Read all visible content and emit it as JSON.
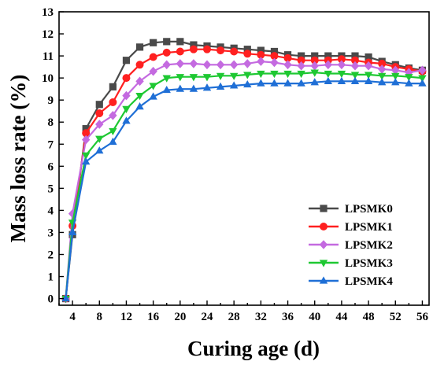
{
  "chart_data": {
    "type": "line",
    "xlabel": "Curing age (d)",
    "ylabel": "Mass loss rate (%)",
    "xlim": [
      2,
      57
    ],
    "ylim": [
      -0.3,
      13
    ],
    "x_ticks": [
      4,
      8,
      12,
      16,
      20,
      24,
      28,
      32,
      36,
      40,
      44,
      48,
      52,
      56
    ],
    "y_ticks": [
      0,
      1,
      2,
      3,
      4,
      5,
      6,
      7,
      8,
      9,
      10,
      11,
      12,
      13
    ],
    "grid": false,
    "legend_position": "bottom-right",
    "x": [
      3,
      4,
      6,
      8,
      10,
      12,
      14,
      16,
      18,
      20,
      22,
      24,
      26,
      28,
      30,
      32,
      34,
      36,
      38,
      40,
      42,
      44,
      46,
      48,
      50,
      52,
      54,
      56
    ],
    "series": [
      {
        "name": "LPSMK0",
        "color": "#4a4a4a",
        "marker": "square",
        "values": [
          0,
          2.9,
          7.7,
          8.8,
          9.6,
          10.8,
          11.4,
          11.6,
          11.65,
          11.65,
          11.5,
          11.45,
          11.4,
          11.35,
          11.3,
          11.25,
          11.2,
          11.05,
          11.0,
          11.0,
          11.0,
          11.0,
          11.0,
          10.95,
          10.75,
          10.6,
          10.45,
          10.35
        ]
      },
      {
        "name": "LPSMK1",
        "color": "#ff2020",
        "marker": "circle",
        "values": [
          0,
          3.3,
          7.5,
          8.4,
          8.9,
          10.0,
          10.6,
          10.95,
          11.15,
          11.2,
          11.3,
          11.3,
          11.25,
          11.2,
          11.1,
          11.05,
          11.0,
          10.9,
          10.8,
          10.8,
          10.8,
          10.85,
          10.8,
          10.7,
          10.65,
          10.5,
          10.4,
          10.3
        ]
      },
      {
        "name": "LPSMK2",
        "color": "#c46ae0",
        "marker": "diamond",
        "values": [
          0,
          3.85,
          7.2,
          7.9,
          8.3,
          9.2,
          9.85,
          10.3,
          10.6,
          10.65,
          10.65,
          10.6,
          10.6,
          10.6,
          10.65,
          10.75,
          10.7,
          10.6,
          10.55,
          10.55,
          10.6,
          10.6,
          10.55,
          10.55,
          10.4,
          10.35,
          10.25,
          10.35
        ]
      },
      {
        "name": "LPSMK3",
        "color": "#1ec832",
        "marker": "triangle-down",
        "values": [
          0,
          3.45,
          6.5,
          7.25,
          7.6,
          8.6,
          9.2,
          9.65,
          10.0,
          10.05,
          10.05,
          10.05,
          10.1,
          10.1,
          10.15,
          10.2,
          10.2,
          10.2,
          10.2,
          10.25,
          10.2,
          10.2,
          10.15,
          10.15,
          10.1,
          10.1,
          10.05,
          10.0
        ]
      },
      {
        "name": "LPSMK4",
        "color": "#1f6fd6",
        "marker": "triangle-up",
        "values": [
          0,
          3.0,
          6.2,
          6.7,
          7.1,
          8.05,
          8.7,
          9.15,
          9.45,
          9.5,
          9.5,
          9.55,
          9.6,
          9.65,
          9.7,
          9.75,
          9.75,
          9.75,
          9.75,
          9.8,
          9.85,
          9.85,
          9.85,
          9.85,
          9.8,
          9.8,
          9.75,
          9.75
        ]
      }
    ]
  }
}
